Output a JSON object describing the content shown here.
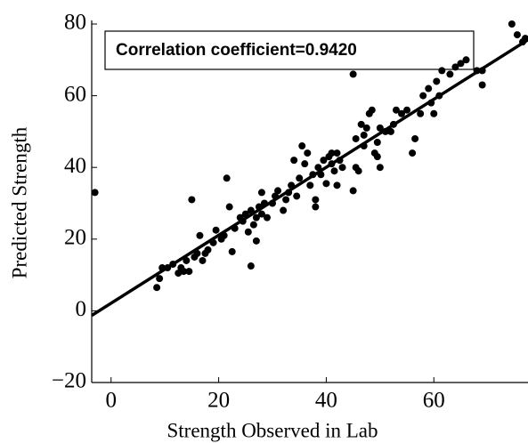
{
  "chart_data": {
    "type": "scatter",
    "xlabel": "Strength Observed in Lab",
    "ylabel": "Predicted Strength",
    "annotation": "Correlation coefficient=0.9420",
    "xlim": [
      -3.6,
      77.5
    ],
    "ylim": [
      -20,
      80
    ],
    "xticks": [
      0,
      20,
      40,
      60
    ],
    "yticks": [
      {
        "value": -20,
        "label": "−20"
      },
      0,
      20,
      40,
      60,
      80
    ],
    "series": [
      {
        "color": "#000000",
        "x": [
          -3,
          8.5,
          9,
          9.5,
          10.5,
          11.5,
          12.5,
          13,
          13.5,
          14,
          14.5,
          15,
          15.5,
          16,
          16.5,
          17,
          17.5,
          18,
          19,
          19.5,
          20.5,
          21,
          21.5,
          22,
          22.5,
          23,
          24,
          24.5,
          25,
          25.5,
          26,
          26,
          26.5,
          27,
          27,
          27.5,
          28,
          28,
          28.5,
          29,
          30,
          30.5,
          31,
          32,
          32.5,
          33,
          33.5,
          34,
          34.5,
          35,
          35.5,
          36,
          36.5,
          37,
          37.5,
          38,
          38,
          38.5,
          39,
          39.5,
          40,
          40.5,
          41,
          41,
          41.5,
          42,
          42,
          42.5,
          43,
          45,
          45,
          45.5,
          45.5,
          46,
          46.5,
          47,
          47,
          47.5,
          48,
          48.5,
          49,
          49.5,
          49.5,
          50,
          50,
          51,
          52,
          52.5,
          53,
          54,
          55,
          56,
          56.5,
          57.5,
          58,
          59,
          59.5,
          60,
          60.5,
          61,
          61.5,
          63,
          64,
          65,
          66,
          68,
          69,
          69,
          74.5,
          75.5,
          76.5,
          77
        ],
        "y": [
          33,
          6.5,
          9,
          12,
          12,
          13,
          10.5,
          12,
          11,
          14,
          11,
          31,
          15,
          16,
          21,
          14,
          16,
          17,
          19,
          22.5,
          20,
          21,
          37,
          29,
          16.5,
          23,
          26,
          25,
          27,
          22,
          12.5,
          28,
          24,
          26,
          19.5,
          29,
          27,
          33,
          30,
          26,
          30,
          32,
          33.5,
          28,
          31,
          33,
          35,
          42,
          32,
          37,
          46,
          41,
          44,
          35,
          38,
          31,
          29,
          40,
          38,
          42,
          35.5,
          43,
          44,
          41,
          39,
          44,
          35,
          42,
          40,
          66,
          33.5,
          48,
          40,
          39,
          52,
          46,
          49,
          51,
          55,
          56,
          44,
          47,
          43,
          40,
          51,
          50,
          50,
          52,
          56,
          55,
          56,
          44,
          48,
          55,
          60,
          62,
          58,
          55,
          64,
          60,
          67,
          66,
          68,
          69,
          70,
          67,
          63,
          67,
          80,
          77,
          75,
          76
        ]
      }
    ],
    "fit": {
      "color": "#000000",
      "x": [
        -3.6,
        77.5
      ],
      "y": [
        -1.3,
        75.6
      ]
    }
  }
}
